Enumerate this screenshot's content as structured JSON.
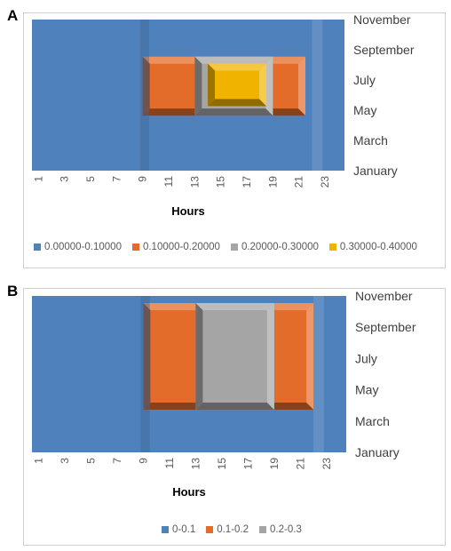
{
  "chart_data": [
    {
      "panel": "A",
      "type": "heatmap",
      "xlabel": "Hours",
      "x_ticks": [
        "1",
        "3",
        "5",
        "7",
        "9",
        "11",
        "13",
        "15",
        "17",
        "19",
        "21",
        "23"
      ],
      "y_ticks": [
        "January",
        "March",
        "May",
        "July",
        "September",
        "November"
      ],
      "legend": [
        "0.00000-0.10000",
        "0.10000-0.20000",
        "0.20000-0.30000",
        "0.30000-0.40000"
      ],
      "colors": [
        "#4f81bd",
        "#e46c2a",
        "#a5a5a5",
        "#f0b400"
      ],
      "regions": [
        {
          "level": 0,
          "hours": [
            0,
            24
          ],
          "months": [
            1,
            12
          ]
        },
        {
          "level": 1,
          "hours": [
            8.5,
            21
          ],
          "months": [
            5,
            9.3
          ]
        },
        {
          "level": 2,
          "hours": [
            12.5,
            18.5
          ],
          "months": [
            5,
            9.3
          ]
        },
        {
          "level": 3,
          "hours": [
            13.5,
            18
          ],
          "months": [
            5.7,
            8.8
          ]
        }
      ]
    },
    {
      "panel": "B",
      "type": "heatmap",
      "xlabel": "Hours",
      "x_ticks": [
        "1",
        "3",
        "5",
        "7",
        "9",
        "11",
        "13",
        "15",
        "17",
        "19",
        "21",
        "23"
      ],
      "y_ticks": [
        "January",
        "March",
        "May",
        "July",
        "September",
        "November"
      ],
      "legend": [
        "0-0.1",
        "0.1-0.2",
        "0.2-0.3"
      ],
      "colors": [
        "#4f81bd",
        "#e46c2a",
        "#a5a5a5"
      ],
      "regions": [
        {
          "level": 0,
          "hours": [
            0,
            24
          ],
          "months": [
            1,
            12
          ]
        },
        {
          "level": 1,
          "hours": [
            8.5,
            21.5
          ],
          "months": [
            4,
            11.5
          ]
        },
        {
          "level": 2,
          "hours": [
            12.5,
            18.5
          ],
          "months": [
            4,
            11.5
          ]
        }
      ]
    }
  ]
}
